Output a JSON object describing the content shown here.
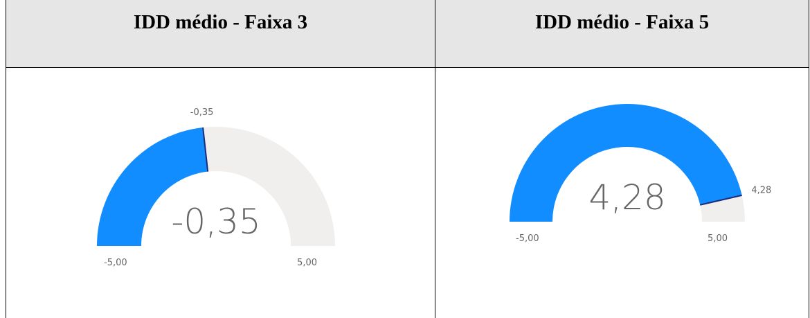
{
  "chart_data": [
    {
      "type": "gauge",
      "title": "IDD médio  - Faixa 3",
      "values": [
        -0.35
      ],
      "value_labels": [
        "-0,35"
      ],
      "color": "#118dff",
      "track_color": "#f0efee",
      "needle_color": "#1d2a7a",
      "ylim": [
        -5,
        5
      ],
      "yticks": [
        {
          "value": -5,
          "label": "-5,00"
        },
        {
          "value": 5,
          "label": "5,00"
        }
      ]
    },
    {
      "type": "gauge",
      "title": "IDD médio  - Faixa 5",
      "values": [
        4.28
      ],
      "value_labels": [
        "4,28"
      ],
      "color": "#118dff",
      "track_color": "#f0efee",
      "needle_color": "#1d2a7a",
      "ylim": [
        -5,
        5
      ],
      "yticks": [
        {
          "value": -5,
          "label": "-5,00"
        },
        {
          "value": 5,
          "label": "5,00"
        }
      ]
    }
  ]
}
